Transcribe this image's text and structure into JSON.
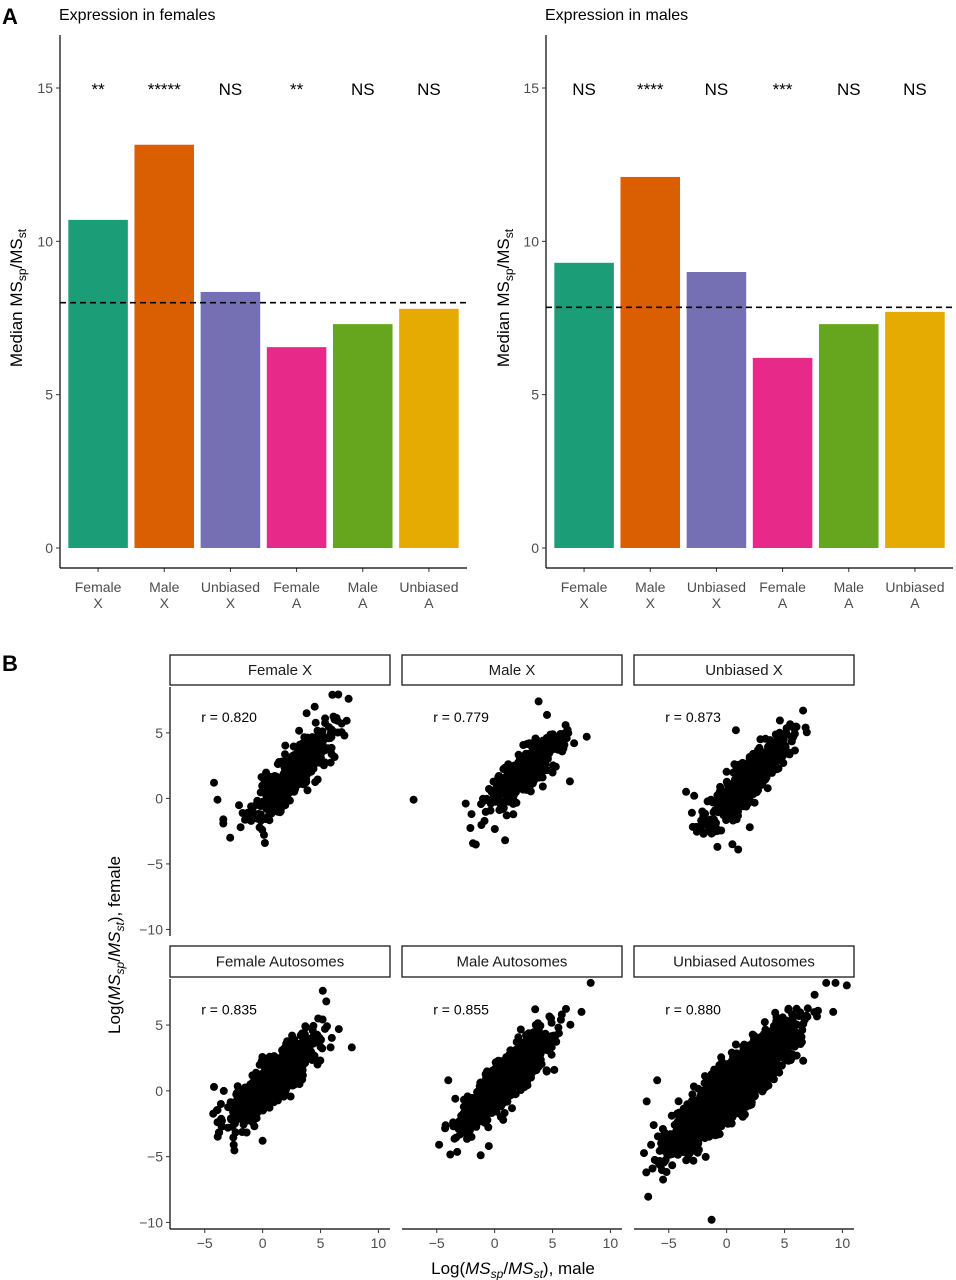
{
  "chart_data": [
    {
      "type": "bar",
      "panel": "A",
      "title": "Expression in females",
      "ylabel": "Median MSsp/MSst",
      "ylabel_main": "Median MS",
      "ylabel_sub1": "sp",
      "ylabel_slash": "/MS",
      "ylabel_sub2": "st",
      "ylim": [
        0,
        16.5
      ],
      "yticks": [
        0,
        5,
        10,
        15
      ],
      "categories": [
        "Female X",
        "Male X",
        "Unbiased X",
        "Female A",
        "Male A",
        "Unbiased A"
      ],
      "category_lines": [
        [
          "Female",
          "X"
        ],
        [
          "Male",
          "X"
        ],
        [
          "Unbiased",
          "X"
        ],
        [
          "Female",
          "A"
        ],
        [
          "Male",
          "A"
        ],
        [
          "Unbiased",
          "A"
        ]
      ],
      "values": [
        10.7,
        13.15,
        8.35,
        6.55,
        7.3,
        7.8
      ],
      "colors": [
        "#1b9e77",
        "#d95f02",
        "#7570b3",
        "#e7298a",
        "#66a61e",
        "#e6ab02"
      ],
      "significance": [
        "**",
        "*****",
        "NS",
        "**",
        "NS",
        "NS"
      ],
      "reference_line": 8.0,
      "grid": false
    },
    {
      "type": "bar",
      "panel": "",
      "title": "Expression in males",
      "ylabel": "Median MSsp/MSst",
      "ylabel_main": "Median MS",
      "ylabel_sub1": "sp",
      "ylabel_slash": "/MS",
      "ylabel_sub2": "st",
      "ylim": [
        0,
        16.5
      ],
      "yticks": [
        0,
        5,
        10,
        15
      ],
      "categories": [
        "Female X",
        "Male X",
        "Unbiased X",
        "Female A",
        "Male A",
        "Unbiased A"
      ],
      "category_lines": [
        [
          "Female",
          "X"
        ],
        [
          "Male",
          "X"
        ],
        [
          "Unbiased",
          "X"
        ],
        [
          "Female",
          "A"
        ],
        [
          "Male",
          "A"
        ],
        [
          "Unbiased",
          "A"
        ]
      ],
      "values": [
        9.3,
        12.1,
        9.0,
        6.2,
        7.3,
        7.7
      ],
      "colors": [
        "#1b9e77",
        "#d95f02",
        "#7570b3",
        "#e7298a",
        "#66a61e",
        "#e6ab02"
      ],
      "significance": [
        "NS",
        "****",
        "NS",
        "***",
        "NS",
        "NS"
      ],
      "reference_line": 7.85,
      "grid": false
    },
    {
      "type": "scatter",
      "panel": "B",
      "xlabel": "Log(MSsp/MSst), male",
      "ylabel": "Log(MSsp/MSst), female",
      "xlabel_parts": [
        "Log(",
        "MS",
        "sp",
        "/",
        "MS",
        "st",
        "), male"
      ],
      "ylabel_parts": [
        "Log(",
        "MS",
        "sp",
        "/",
        "MS",
        "st",
        "), female"
      ],
      "xlim": [
        -8,
        11
      ],
      "ylim": [
        -10.5,
        8.5
      ],
      "xticks": [
        -5,
        0,
        5,
        10
      ],
      "yticks": [
        -10,
        -5,
        0,
        5
      ],
      "point_color": "#000000",
      "grid": false,
      "facets": [
        {
          "label": "Female X",
          "r": "r = 0.820",
          "cx": 2.5,
          "cy": 1.8,
          "slope": 0.85,
          "sd_x": 1.7,
          "sd_resid": 0.9,
          "n": 420,
          "seed": 11,
          "extra": [
            [
              -4.2,
              1.2
            ],
            [
              -3.9,
              -0.1
            ],
            [
              -3.4,
              -1.6
            ],
            [
              -2.8,
              -3.0
            ],
            [
              -1.9,
              -2.2
            ],
            [
              0.2,
              -3.4
            ],
            [
              5.9,
              5.0
            ],
            [
              4.5,
              7.0
            ],
            [
              3.8,
              6.5
            ]
          ]
        },
        {
          "label": "Male X",
          "r": "r = 0.779",
          "cx": 2.5,
          "cy": 1.8,
          "slope": 0.8,
          "sd_x": 1.6,
          "sd_resid": 0.9,
          "n": 320,
          "seed": 23,
          "extra": [
            [
              -7.0,
              -0.1
            ],
            [
              -2.5,
              -0.4
            ],
            [
              -2.0,
              -1.2
            ],
            [
              0.9,
              -3.2
            ],
            [
              3.8,
              7.4
            ],
            [
              5.9,
              4.5
            ],
            [
              6.5,
              1.3
            ]
          ]
        },
        {
          "label": "Unbiased X",
          "r": "r = 0.873",
          "cx": 2.0,
          "cy": 1.5,
          "slope": 0.9,
          "sd_x": 1.7,
          "sd_resid": 0.75,
          "n": 620,
          "seed": 37,
          "extra": [
            [
              -3.5,
              0.5
            ],
            [
              -3.0,
              -1.1
            ],
            [
              -2.0,
              -2.7
            ],
            [
              -0.8,
              -3.7
            ],
            [
              0.5,
              -3.5
            ],
            [
              1.0,
              -3.9
            ],
            [
              2.0,
              -2.2
            ],
            [
              0.8,
              5.2
            ],
            [
              6.6,
              6.7
            ],
            [
              -2.8,
              0.2
            ],
            [
              -2.1,
              -1.0
            ]
          ]
        },
        {
          "label": "Female Autosomes",
          "r": "r = 0.835",
          "cx": 1.0,
          "cy": 0.9,
          "slope": 0.75,
          "sd_x": 1.7,
          "sd_resid": 0.85,
          "n": 900,
          "seed": 41,
          "extra": [
            [
              -4.2,
              0.3
            ],
            [
              -3.6,
              -1.0
            ],
            [
              -3.0,
              -2.8
            ],
            [
              -2.5,
              -4.1
            ],
            [
              0.0,
              -3.8
            ],
            [
              -3.5,
              -2.7
            ],
            [
              5.2,
              7.6
            ],
            [
              5.5,
              6.8
            ],
            [
              7.7,
              3.3
            ],
            [
              4.8,
              5.5
            ]
          ]
        },
        {
          "label": "Male Autosomes",
          "r": "r = 0.855",
          "cx": 1.0,
          "cy": 0.9,
          "slope": 0.8,
          "sd_x": 1.7,
          "sd_resid": 0.85,
          "n": 900,
          "seed": 53,
          "extra": [
            [
              -4.0,
              0.8
            ],
            [
              -3.4,
              -0.6
            ],
            [
              -2.5,
              -2.8
            ],
            [
              -1.2,
              -4.9
            ],
            [
              -0.5,
              -4.2
            ],
            [
              3.5,
              6.2
            ],
            [
              5.8,
              5.8
            ],
            [
              8.3,
              8.2
            ],
            [
              7.5,
              6.0
            ],
            [
              -2.0,
              -3.5
            ]
          ]
        },
        {
          "label": "Unbiased Autosomes",
          "r": "r = 0.880",
          "cx": 0.5,
          "cy": 0.3,
          "slope": 0.8,
          "sd_x": 2.4,
          "sd_resid": 0.95,
          "n": 2600,
          "seed": 67,
          "extra": [
            [
              -6.9,
              -0.8
            ],
            [
              -6.3,
              -2.6
            ],
            [
              -5.5,
              -2.9
            ],
            [
              -4.7,
              -4.8
            ],
            [
              -2.5,
              -4.7
            ],
            [
              -1.3,
              -9.8
            ],
            [
              9.4,
              8.9
            ],
            [
              8.6,
              8.2
            ],
            [
              9.2,
              6.0
            ],
            [
              7.6,
              7.3
            ],
            [
              -5.2,
              -3.6
            ],
            [
              -6.0,
              0.8
            ]
          ]
        }
      ]
    }
  ]
}
